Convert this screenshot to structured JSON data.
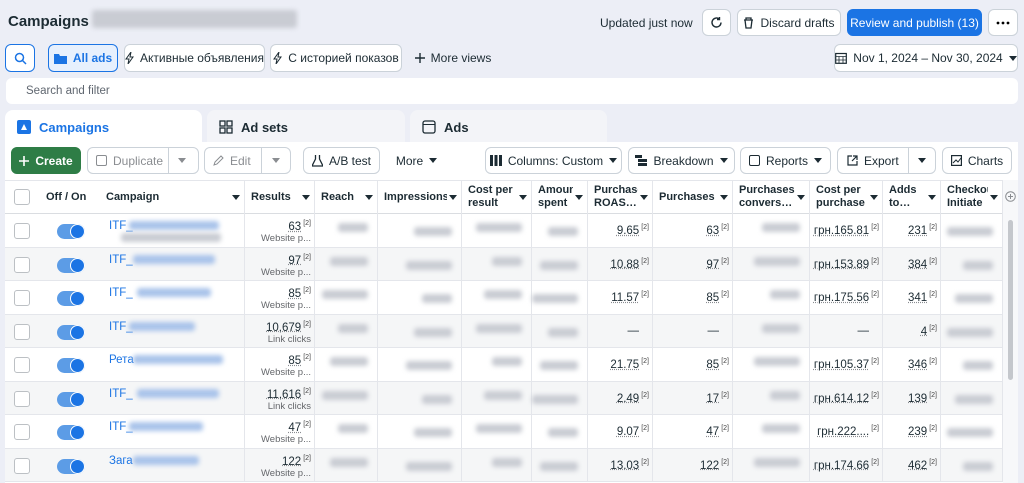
{
  "header": {
    "title": "Campaigns",
    "status": "Updated just now",
    "discard": "Discard drafts",
    "publish": "Review and publish (13)"
  },
  "views": {
    "all": "All ads",
    "active": "Активные объявления",
    "history": "С историей показов",
    "more": "More views"
  },
  "date_range": "Nov 1, 2024 – Nov 30, 2024",
  "search_placeholder": "Search and filter",
  "tabs": [
    "Campaigns",
    "Ad sets",
    "Ads"
  ],
  "toolbar": {
    "create": "Create",
    "duplicate": "Duplicate",
    "edit": "Edit",
    "ab_test": "A/B test",
    "more": "More",
    "columns": "Columns: Custom",
    "breakdown": "Breakdown",
    "reports": "Reports",
    "export": "Export",
    "charts": "Charts"
  },
  "table": {
    "columns": [
      "Off / On",
      "Campaign",
      "Results",
      "Reach",
      "Impressions",
      "Cost per result",
      "Amount spent",
      "Purchase ROAS…",
      "Purchases",
      "Purchases convers…",
      "Cost per purchase",
      "Adds to…",
      "Checkout Initiate"
    ],
    "footnote": "[2]",
    "rows": [
      {
        "campaign": "ITF_",
        "results": "63",
        "results_type": "Website p...",
        "roas": "9.65",
        "purchases": "63",
        "cost_per_purchase": "грн.165.81",
        "adds_to_cart": "231"
      },
      {
        "campaign": "ITF_",
        "results": "97",
        "results_type": "Website p...",
        "roas": "10.88",
        "purchases": "97",
        "cost_per_purchase": "грн.153.89",
        "adds_to_cart": "384"
      },
      {
        "campaign": "ITF_",
        "results": "85",
        "results_type": "Website p...",
        "roas": "11.57",
        "purchases": "85",
        "cost_per_purchase": "грн.175.56",
        "adds_to_cart": "341"
      },
      {
        "campaign": "ITF_",
        "results": "10,679",
        "results_type": "Link clicks",
        "roas": "—",
        "purchases": "—",
        "cost_per_purchase": "—",
        "adds_to_cart": "4"
      },
      {
        "campaign": "Рета",
        "results": "85",
        "results_type": "Website p...",
        "roas": "21.75",
        "purchases": "85",
        "cost_per_purchase": "грн.105.37",
        "adds_to_cart": "346"
      },
      {
        "campaign": "ITF_",
        "results": "11,616",
        "results_type": "Link clicks",
        "roas": "2.49",
        "purchases": "17",
        "cost_per_purchase": "грн.614.12",
        "adds_to_cart": "139"
      },
      {
        "campaign": "ITF_",
        "results": "47",
        "results_type": "Website p...",
        "roas": "9.07",
        "purchases": "47",
        "cost_per_purchase": "грн.222....",
        "adds_to_cart": "239"
      },
      {
        "campaign": "Зага",
        "results": "122",
        "results_type": "Website p...",
        "roas": "13.03",
        "purchases": "122",
        "cost_per_purchase": "грн.174.66",
        "adds_to_cart": "462"
      }
    ]
  }
}
